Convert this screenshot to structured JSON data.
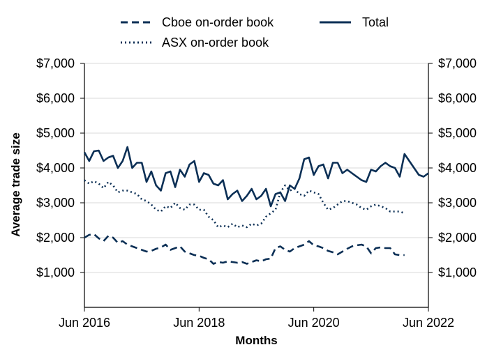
{
  "chart_data": {
    "type": "line",
    "title": "",
    "xlabel": "Months",
    "ylabel": "Average trade size",
    "x_start": "2016-06",
    "x_end": "2022-06",
    "x_ticks": [
      {
        "label": "Jun 2016",
        "date": "2016-06"
      },
      {
        "label": "Jun 2018",
        "date": "2018-06"
      },
      {
        "label": "Jun 2020",
        "date": "2020-06"
      },
      {
        "label": "Jun 2022",
        "date": "2022-06"
      }
    ],
    "ylim": [
      0,
      7000
    ],
    "y_ticks": [
      1000,
      2000,
      3000,
      4000,
      5000,
      6000,
      7000
    ],
    "y_tick_labels": [
      "$1,000",
      "$2,000",
      "$3,000",
      "$4,000",
      "$5,000",
      "$6,000",
      "$7,000"
    ],
    "y_right_tick_labels": [
      "$1,000",
      "$2,000",
      "$3,000",
      "$4,000",
      "$5,000",
      "$6,000",
      "$7,000"
    ],
    "grid": true,
    "legend_placement": "top",
    "series": [
      {
        "name": "Cboe on-order book",
        "style": "dashed",
        "color": "#0b2f55",
        "points": [
          [
            "2016-06",
            2000
          ],
          [
            "2016-07",
            2080
          ],
          [
            "2016-08",
            2100
          ],
          [
            "2016-09",
            1980
          ],
          [
            "2016-10",
            1900
          ],
          [
            "2016-11",
            2050
          ],
          [
            "2016-12",
            2000
          ],
          [
            "2017-01",
            1850
          ],
          [
            "2017-02",
            1900
          ],
          [
            "2017-03",
            1800
          ],
          [
            "2017-04",
            1750
          ],
          [
            "2017-05",
            1700
          ],
          [
            "2017-06",
            1650
          ],
          [
            "2017-07",
            1600
          ],
          [
            "2017-08",
            1620
          ],
          [
            "2017-09",
            1680
          ],
          [
            "2017-10",
            1720
          ],
          [
            "2017-11",
            1800
          ],
          [
            "2017-12",
            1650
          ],
          [
            "2018-01",
            1700
          ],
          [
            "2018-02",
            1750
          ],
          [
            "2018-03",
            1600
          ],
          [
            "2018-04",
            1550
          ],
          [
            "2018-05",
            1500
          ],
          [
            "2018-06",
            1480
          ],
          [
            "2018-07",
            1420
          ],
          [
            "2018-08",
            1380
          ],
          [
            "2018-09",
            1250
          ],
          [
            "2018-10",
            1300
          ],
          [
            "2018-11",
            1280
          ],
          [
            "2018-12",
            1320
          ],
          [
            "2019-01",
            1300
          ],
          [
            "2019-02",
            1280
          ],
          [
            "2019-03",
            1300
          ],
          [
            "2019-04",
            1250
          ],
          [
            "2019-05",
            1300
          ],
          [
            "2019-06",
            1350
          ],
          [
            "2019-07",
            1320
          ],
          [
            "2019-08",
            1380
          ],
          [
            "2019-09",
            1400
          ],
          [
            "2019-10",
            1700
          ],
          [
            "2019-11",
            1750
          ],
          [
            "2019-12",
            1650
          ],
          [
            "2020-01",
            1600
          ],
          [
            "2020-02",
            1700
          ],
          [
            "2020-03",
            1750
          ],
          [
            "2020-04",
            1800
          ],
          [
            "2020-05",
            1900
          ],
          [
            "2020-06",
            1780
          ],
          [
            "2020-07",
            1750
          ],
          [
            "2020-08",
            1700
          ],
          [
            "2020-09",
            1620
          ],
          [
            "2020-10",
            1580
          ],
          [
            "2020-11",
            1520
          ],
          [
            "2020-12",
            1600
          ],
          [
            "2021-01",
            1680
          ],
          [
            "2021-02",
            1750
          ],
          [
            "2021-03",
            1780
          ],
          [
            "2021-04",
            1800
          ],
          [
            "2021-05",
            1750
          ],
          [
            "2021-06",
            1550
          ],
          [
            "2021-07",
            1700
          ],
          [
            "2021-08",
            1720
          ],
          [
            "2021-09",
            1700
          ],
          [
            "2021-10",
            1700
          ],
          [
            "2021-11",
            1520
          ],
          [
            "2021-12",
            1500
          ],
          [
            "2022-01",
            1500
          ]
        ]
      },
      {
        "name": "ASX on-order book",
        "style": "dotted",
        "color": "#0b2f55",
        "points": [
          [
            "2016-06",
            3650
          ],
          [
            "2016-07",
            3550
          ],
          [
            "2016-08",
            3620
          ],
          [
            "2016-09",
            3550
          ],
          [
            "2016-10",
            3420
          ],
          [
            "2016-11",
            3600
          ],
          [
            "2016-12",
            3500
          ],
          [
            "2017-01",
            3300
          ],
          [
            "2017-02",
            3350
          ],
          [
            "2017-03",
            3350
          ],
          [
            "2017-04",
            3300
          ],
          [
            "2017-05",
            3250
          ],
          [
            "2017-06",
            3100
          ],
          [
            "2017-07",
            3050
          ],
          [
            "2017-08",
            2950
          ],
          [
            "2017-09",
            2800
          ],
          [
            "2017-10",
            2750
          ],
          [
            "2017-11",
            2900
          ],
          [
            "2017-12",
            2850
          ],
          [
            "2018-01",
            3000
          ],
          [
            "2018-02",
            2850
          ],
          [
            "2018-03",
            2800
          ],
          [
            "2018-04",
            2950
          ],
          [
            "2018-05",
            2950
          ],
          [
            "2018-06",
            2800
          ],
          [
            "2018-07",
            2800
          ],
          [
            "2018-08",
            2600
          ],
          [
            "2018-09",
            2500
          ],
          [
            "2018-10",
            2300
          ],
          [
            "2018-11",
            2350
          ],
          [
            "2018-12",
            2300
          ],
          [
            "2019-01",
            2400
          ],
          [
            "2019-02",
            2300
          ],
          [
            "2019-03",
            2350
          ],
          [
            "2019-04",
            2300
          ],
          [
            "2019-05",
            2400
          ],
          [
            "2019-06",
            2350
          ],
          [
            "2019-07",
            2400
          ],
          [
            "2019-08",
            2600
          ],
          [
            "2019-09",
            2700
          ],
          [
            "2019-10",
            2800
          ],
          [
            "2019-11",
            3300
          ],
          [
            "2019-12",
            3500
          ],
          [
            "2020-01",
            3350
          ],
          [
            "2020-02",
            3400
          ],
          [
            "2020-03",
            3250
          ],
          [
            "2020-04",
            3200
          ],
          [
            "2020-05",
            3350
          ],
          [
            "2020-06",
            3300
          ],
          [
            "2020-07",
            3250
          ],
          [
            "2020-08",
            3000
          ],
          [
            "2020-09",
            2800
          ],
          [
            "2020-10",
            2850
          ],
          [
            "2020-11",
            2950
          ],
          [
            "2020-12",
            3050
          ],
          [
            "2021-01",
            3050
          ],
          [
            "2021-02",
            3000
          ],
          [
            "2021-03",
            2950
          ],
          [
            "2021-04",
            2850
          ],
          [
            "2021-05",
            2800
          ],
          [
            "2021-06",
            2900
          ],
          [
            "2021-07",
            2950
          ],
          [
            "2021-08",
            2900
          ],
          [
            "2021-09",
            2850
          ],
          [
            "2021-10",
            2750
          ],
          [
            "2021-11",
            2750
          ],
          [
            "2021-12",
            2750
          ],
          [
            "2022-01",
            2700
          ]
        ]
      },
      {
        "name": "Total",
        "style": "solid",
        "color": "#0b2f55",
        "points": [
          [
            "2016-06",
            4450
          ],
          [
            "2016-07",
            4200
          ],
          [
            "2016-08",
            4480
          ],
          [
            "2016-09",
            4500
          ],
          [
            "2016-10",
            4200
          ],
          [
            "2016-11",
            4300
          ],
          [
            "2016-12",
            4350
          ],
          [
            "2017-01",
            4000
          ],
          [
            "2017-02",
            4200
          ],
          [
            "2017-03",
            4600
          ],
          [
            "2017-04",
            4000
          ],
          [
            "2017-05",
            4150
          ],
          [
            "2017-06",
            4150
          ],
          [
            "2017-07",
            3600
          ],
          [
            "2017-08",
            3900
          ],
          [
            "2017-09",
            3500
          ],
          [
            "2017-10",
            3350
          ],
          [
            "2017-11",
            3850
          ],
          [
            "2017-12",
            3900
          ],
          [
            "2018-01",
            3450
          ],
          [
            "2018-02",
            3950
          ],
          [
            "2018-03",
            3750
          ],
          [
            "2018-04",
            4100
          ],
          [
            "2018-05",
            4200
          ],
          [
            "2018-06",
            3600
          ],
          [
            "2018-07",
            3850
          ],
          [
            "2018-08",
            3800
          ],
          [
            "2018-09",
            3550
          ],
          [
            "2018-10",
            3500
          ],
          [
            "2018-11",
            3650
          ],
          [
            "2018-12",
            3100
          ],
          [
            "2019-01",
            3250
          ],
          [
            "2019-02",
            3350
          ],
          [
            "2019-03",
            3050
          ],
          [
            "2019-04",
            3200
          ],
          [
            "2019-05",
            3400
          ],
          [
            "2019-06",
            3100
          ],
          [
            "2019-07",
            3200
          ],
          [
            "2019-08",
            3400
          ],
          [
            "2019-09",
            2900
          ],
          [
            "2019-10",
            3250
          ],
          [
            "2019-11",
            3300
          ],
          [
            "2019-12",
            3050
          ],
          [
            "2020-01",
            3500
          ],
          [
            "2020-02",
            3400
          ],
          [
            "2020-03",
            3700
          ],
          [
            "2020-04",
            4250
          ],
          [
            "2020-05",
            4300
          ],
          [
            "2020-06",
            3800
          ],
          [
            "2020-07",
            4050
          ],
          [
            "2020-08",
            4100
          ],
          [
            "2020-09",
            3700
          ],
          [
            "2020-10",
            4150
          ],
          [
            "2020-11",
            4150
          ],
          [
            "2020-12",
            3850
          ],
          [
            "2021-01",
            3950
          ],
          [
            "2021-02",
            3850
          ],
          [
            "2021-03",
            3750
          ],
          [
            "2021-04",
            3650
          ],
          [
            "2021-05",
            3600
          ],
          [
            "2021-06",
            3950
          ],
          [
            "2021-07",
            3900
          ],
          [
            "2021-08",
            4050
          ],
          [
            "2021-09",
            4150
          ],
          [
            "2021-10",
            4050
          ],
          [
            "2021-11",
            4000
          ],
          [
            "2021-12",
            3750
          ],
          [
            "2022-01",
            4400
          ],
          [
            "2022-02",
            4200
          ],
          [
            "2022-03",
            4000
          ],
          [
            "2022-04",
            3800
          ],
          [
            "2022-05",
            3750
          ],
          [
            "2022-06",
            3850
          ]
        ]
      }
    ]
  }
}
